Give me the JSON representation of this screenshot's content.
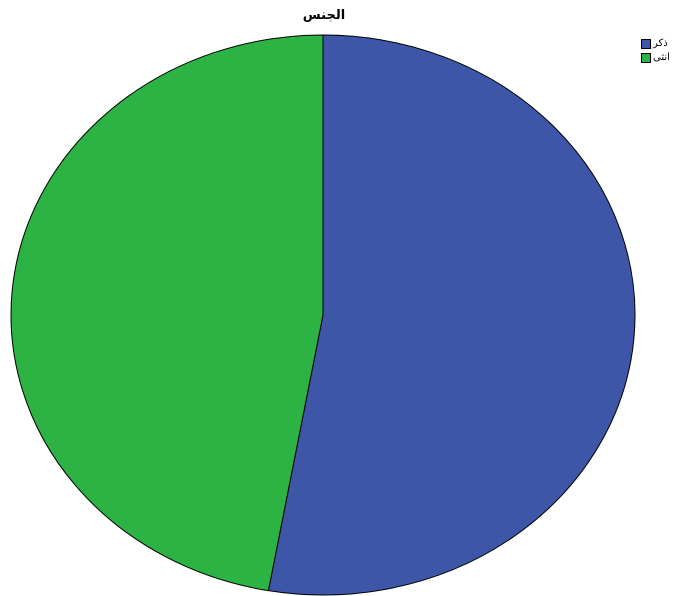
{
  "chart_data": {
    "type": "pie",
    "title": "الجنس",
    "categories": [
      "ذكر",
      "انثى"
    ],
    "values": [
      52.8,
      47.2
    ],
    "colors": [
      "#3d56a8",
      "#2db343"
    ],
    "legend_position": "top-right"
  }
}
